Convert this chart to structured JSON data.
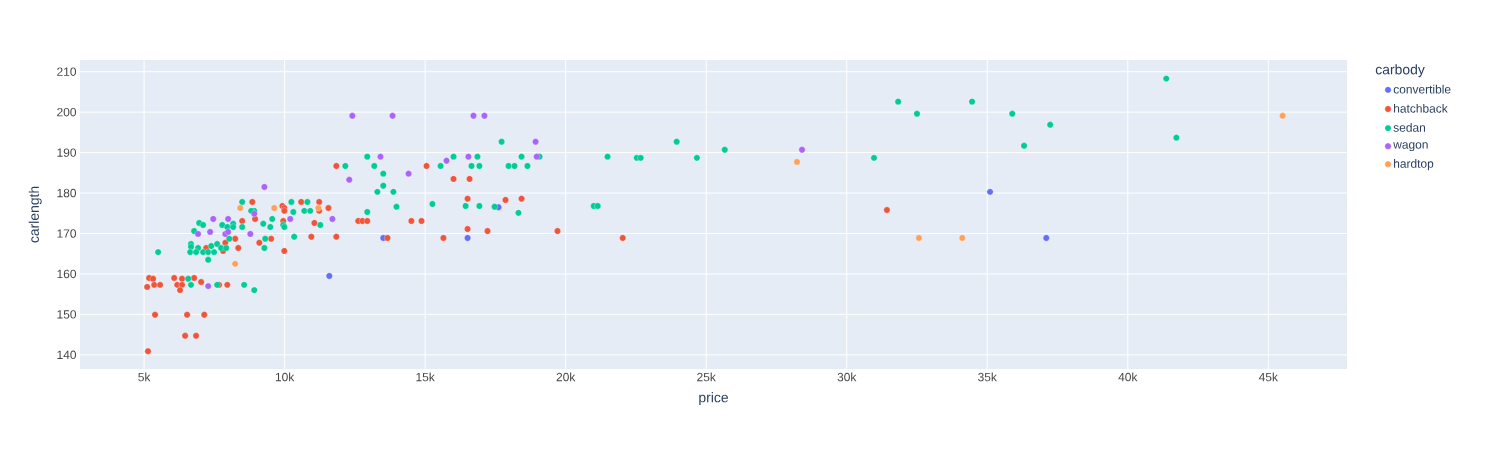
{
  "chart_data": {
    "type": "scatter",
    "xlabel": "price",
    "ylabel": "carlength",
    "legend_title": "carbody",
    "legend": "top right",
    "grid": true,
    "marker": "circle",
    "xlim": [
      2720,
      47800
    ],
    "ylim": [
      136.5,
      212.9
    ],
    "xticks": [
      {
        "value": 5000,
        "label": "5k"
      },
      {
        "value": 10000,
        "label": "10k"
      },
      {
        "value": 15000,
        "label": "15k"
      },
      {
        "value": 20000,
        "label": "20k"
      },
      {
        "value": 25000,
        "label": "25k"
      },
      {
        "value": 30000,
        "label": "30k"
      },
      {
        "value": 35000,
        "label": "35k"
      },
      {
        "value": 40000,
        "label": "40k"
      },
      {
        "value": 45000,
        "label": "45k"
      }
    ],
    "yticks": [
      140,
      150,
      160,
      170,
      180,
      190,
      200,
      210
    ],
    "series": [
      {
        "name": "convertible",
        "color": "#636efa",
        "x": [
          11590,
          13510,
          17610,
          16510,
          35100,
          37100
        ],
        "values": [
          159.5,
          168.9,
          176.5,
          168.9,
          180.3,
          168.9
        ]
      },
      {
        "name": "hatchback",
        "color": "#ef553b",
        "x": [
          8850,
          9920,
          9990,
          9990,
          10590,
          11230,
          11230,
          11560,
          8490,
          8950,
          9950,
          11060,
          12620,
          12770,
          12940,
          7890,
          8240,
          9100,
          9520,
          10950,
          11840,
          7210,
          7810,
          8350,
          9990,
          5180,
          5320,
          6070,
          6350,
          6780,
          5110,
          5360,
          5570,
          6180,
          6350,
          6280,
          7030,
          7670,
          7960,
          5390,
          6530,
          7140,
          6460,
          6850,
          5140,
          11840,
          15050,
          16010,
          16580,
          16510,
          17860,
          18430,
          14510,
          14870,
          16510,
          17220,
          19710,
          13660,
          15650,
          22030,
          31430
        ],
        "values": [
          177.8,
          176.8,
          176.3,
          175.6,
          177.8,
          177.8,
          175.6,
          176.3,
          173.1,
          173.6,
          173.1,
          172.6,
          173.1,
          173.1,
          173.1,
          167.7,
          168.7,
          167.7,
          168.7,
          169.2,
          169.2,
          166.4,
          165.7,
          166.4,
          165.7,
          159.0,
          158.8,
          159.0,
          158.8,
          159.0,
          156.8,
          157.3,
          157.3,
          157.3,
          157.3,
          156.0,
          158.0,
          157.3,
          157.3,
          149.9,
          149.9,
          149.9,
          144.7,
          144.7,
          140.9,
          186.7,
          186.7,
          183.5,
          183.5,
          178.6,
          178.3,
          178.6,
          173.1,
          173.1,
          171.1,
          170.6,
          170.6,
          168.9,
          168.9,
          168.9,
          175.8
        ]
      },
      {
        "name": "sedan",
        "color": "#00cc96",
        "x": [
          8490,
          8920,
          8810,
          10240,
          10810,
          10310,
          10700,
          10910,
          12940,
          6960,
          7100,
          7780,
          7960,
          8170,
          8490,
          8170,
          6780,
          9240,
          9490,
          9560,
          9950,
          9990,
          11270,
          8030,
          9310,
          10340,
          6670,
          6670,
          6640,
          6920,
          6850,
          7100,
          7280,
          7490,
          7390,
          7600,
          7740,
          7920,
          7280,
          9280,
          5500,
          6570,
          6670,
          7600,
          8560,
          8920,
          17720,
          12940,
          16860,
          16010,
          18430,
          19070,
          21490,
          12160,
          13190,
          15550,
          16650,
          16930,
          17970,
          18180,
          18640,
          13510,
          13510,
          13300,
          13870,
          13980,
          15260,
          16440,
          16930,
          17470,
          18320,
          21000,
          21140,
          22530,
          22670,
          23950,
          24670,
          25660,
          30970,
          31830,
          32500,
          34460,
          35890,
          36310,
          37240,
          41370,
          41730
        ],
        "values": [
          177.8,
          175.6,
          175.6,
          177.8,
          177.8,
          175.3,
          175.6,
          175.6,
          175.3,
          172.6,
          172.1,
          172.1,
          171.6,
          172.4,
          171.6,
          171.6,
          170.6,
          172.4,
          171.6,
          173.6,
          172.1,
          171.6,
          172.1,
          168.7,
          168.7,
          169.2,
          167.4,
          166.7,
          165.4,
          166.4,
          165.4,
          165.4,
          165.4,
          165.4,
          166.9,
          167.4,
          166.4,
          166.4,
          163.5,
          166.4,
          165.4,
          158.8,
          157.3,
          157.3,
          157.3,
          156.0,
          192.7,
          189.0,
          189.0,
          189.0,
          189.0,
          189.0,
          189.0,
          186.7,
          186.7,
          186.7,
          186.7,
          186.7,
          186.7,
          186.7,
          186.7,
          184.8,
          181.8,
          180.3,
          180.3,
          176.6,
          177.3,
          176.8,
          176.8,
          176.6,
          175.1,
          176.8,
          176.8,
          188.7,
          188.7,
          192.7,
          188.7,
          190.7,
          188.7,
          202.6,
          199.6,
          202.6,
          199.6,
          191.7,
          196.9,
          208.3,
          193.7
        ]
      },
      {
        "name": "wagon",
        "color": "#ab63fa",
        "x": [
          12410,
          13840,
          16720,
          17110,
          18930,
          18970,
          13410,
          16540,
          15760,
          12300,
          14410,
          9280,
          11700,
          10200,
          7460,
          7990,
          7350,
          6920,
          7890,
          7990,
          8780,
          8920,
          7280,
          28410
        ],
        "values": [
          199.1,
          199.1,
          199.1,
          199.1,
          192.7,
          189.0,
          189.0,
          189.0,
          188.0,
          183.3,
          184.8,
          181.5,
          173.6,
          173.6,
          173.6,
          173.6,
          170.4,
          169.9,
          169.9,
          170.4,
          169.9,
          174.9,
          157.0,
          190.7
        ]
      },
      {
        "name": "hardtop",
        "color": "#ffa15a",
        "x": [
          8420,
          8240,
          9630,
          11200,
          28230,
          32570,
          34110,
          45510
        ],
        "values": [
          176.3,
          162.5,
          176.3,
          176.3,
          187.7,
          168.9,
          168.9,
          199.1
        ]
      }
    ]
  }
}
